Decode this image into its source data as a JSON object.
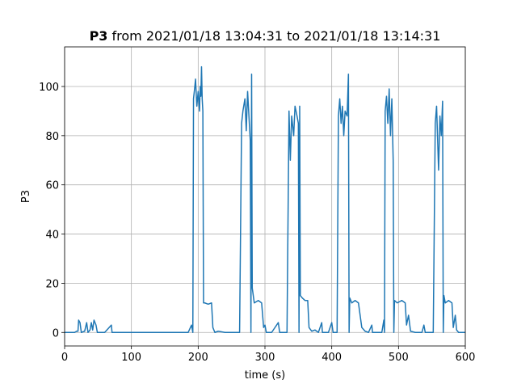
{
  "chart_data": {
    "type": "line",
    "title_bold": "P3",
    "title": "from 2021/01/18 13:04:31 to 2021/01/18 13:14:31",
    "xlabel": "time (s)",
    "ylabel": "P3",
    "color": "#1f77b4",
    "grid": true,
    "xlim": [
      0,
      600
    ],
    "xticks": [
      0,
      100,
      200,
      300,
      400,
      500,
      600
    ],
    "ylim": [
      -5.5,
      116.1
    ],
    "yticks": [
      0,
      20,
      40,
      60,
      80,
      100
    ],
    "x": [
      0,
      15,
      18,
      20,
      21,
      23,
      25,
      30,
      33,
      35,
      38,
      40,
      42,
      44,
      47,
      49,
      55,
      60,
      70,
      71,
      100,
      150,
      185,
      190,
      192,
      193,
      195,
      196,
      198,
      200,
      202,
      203,
      204,
      205,
      206,
      207,
      208,
      210,
      215,
      220,
      222,
      225,
      230,
      240,
      250,
      255,
      262,
      265,
      267,
      270,
      272,
      274,
      276,
      278,
      279,
      280,
      281,
      284,
      290,
      295,
      298,
      300,
      302,
      310,
      320,
      322,
      333,
      336,
      338,
      340,
      343,
      345,
      348,
      350,
      351,
      352,
      353,
      356,
      360,
      364,
      366,
      370,
      375,
      380,
      385,
      386,
      395,
      400,
      402,
      408,
      410,
      412,
      414,
      416,
      418,
      420,
      423,
      425,
      426,
      427,
      430,
      435,
      440,
      445,
      450,
      455,
      460,
      461,
      470,
      475,
      478,
      479,
      480,
      482,
      484,
      486,
      488,
      490,
      492,
      493,
      494,
      498,
      505,
      510,
      512,
      515,
      518,
      525,
      535,
      538,
      540,
      552,
      555,
      557,
      560,
      562,
      564,
      566,
      567,
      568,
      570,
      575,
      580,
      582,
      585,
      587,
      590,
      600
    ],
    "values": [
      0,
      0,
      0.5,
      0.5,
      5,
      4,
      0,
      0.5,
      4,
      0,
      1,
      4,
      1,
      5,
      3,
      0,
      0,
      0,
      3,
      0,
      0,
      0,
      0,
      3,
      0,
      95,
      100,
      103,
      92,
      98,
      90,
      100,
      96,
      108,
      95,
      90,
      12,
      12,
      11.5,
      12,
      2,
      0,
      0.5,
      0,
      0,
      0,
      0,
      85,
      90,
      95,
      82,
      98,
      88,
      78,
      0,
      105,
      18,
      12,
      13,
      12,
      2,
      3,
      0,
      0,
      4,
      0,
      0,
      90,
      70,
      88,
      80,
      92,
      88,
      85,
      0,
      92,
      15,
      14,
      13,
      13,
      2,
      0.5,
      1,
      0,
      4,
      0,
      0,
      4,
      0,
      0,
      88,
      95,
      85,
      92,
      80,
      90,
      88,
      105,
      0,
      14,
      12,
      13,
      12,
      2,
      0.5,
      0,
      3,
      0,
      0,
      0,
      5,
      0,
      90,
      96,
      85,
      99,
      80,
      95,
      70,
      0,
      13,
      12,
      13,
      12,
      3,
      7,
      0.5,
      0,
      0,
      3,
      0,
      0,
      85,
      92,
      66,
      88,
      80,
      94,
      0,
      15,
      12,
      13,
      12,
      2,
      7,
      1,
      0,
      0
    ]
  }
}
